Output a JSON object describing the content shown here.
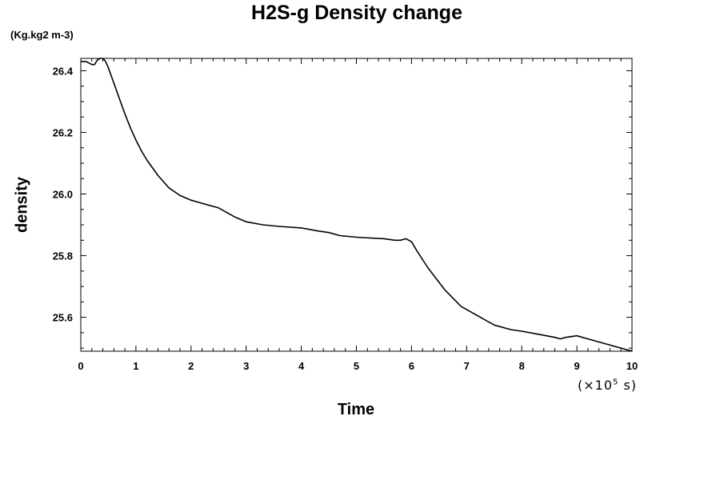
{
  "chart_data": {
    "type": "line",
    "title": "H2S-g Density change",
    "units_label": "(Kg.kg2 m-3)",
    "xlabel": "Time",
    "ylabel": "density",
    "x_multiplier": {
      "prefix": "(×10",
      "exponent": "5",
      "suffix": " s)"
    },
    "xlim": [
      0,
      10
    ],
    "ylim": [
      25.49,
      26.44
    ],
    "x_ticks": [
      0,
      1,
      2,
      3,
      4,
      5,
      6,
      7,
      8,
      9,
      10
    ],
    "y_ticks": [
      25.6,
      25.8,
      26.0,
      26.2,
      26.4
    ],
    "x_tick_labels": [
      "0",
      "1",
      "2",
      "3",
      "4",
      "5",
      "6",
      "7",
      "8",
      "9",
      "10"
    ],
    "y_tick_labels": [
      "25.6",
      "25.8",
      "26.0",
      "26.2",
      "26.4"
    ],
    "grid": false,
    "series": [
      {
        "color": "#000000",
        "x": [
          0,
          0.1,
          0.2,
          0.25,
          0.3,
          0.35,
          0.4,
          0.45,
          0.5,
          0.6,
          0.7,
          0.8,
          0.9,
          1.0,
          1.1,
          1.2,
          1.4,
          1.6,
          1.8,
          2.0,
          2.2,
          2.5,
          2.8,
          3.0,
          3.3,
          3.6,
          4.0,
          4.3,
          4.5,
          4.7,
          5.0,
          5.5,
          5.7,
          5.8,
          5.9,
          6.0,
          6.1,
          6.3,
          6.6,
          6.9,
          7.2,
          7.5,
          7.8,
          8.0,
          8.3,
          8.6,
          8.7,
          8.8,
          9.0,
          9.2,
          9.5,
          9.8,
          10.0
        ],
        "y": [
          26.43,
          26.43,
          26.42,
          26.42,
          26.435,
          26.44,
          26.44,
          26.43,
          26.41,
          26.36,
          26.31,
          26.26,
          26.215,
          26.175,
          26.14,
          26.11,
          26.06,
          26.02,
          25.995,
          25.98,
          25.97,
          25.955,
          25.925,
          25.91,
          25.9,
          25.895,
          25.89,
          25.88,
          25.875,
          25.865,
          25.86,
          25.855,
          25.85,
          25.85,
          25.855,
          25.845,
          25.815,
          25.76,
          25.69,
          25.635,
          25.605,
          25.575,
          25.56,
          25.555,
          25.545,
          25.535,
          25.53,
          25.535,
          25.54,
          25.53,
          25.515,
          25.5,
          25.49
        ]
      }
    ]
  }
}
